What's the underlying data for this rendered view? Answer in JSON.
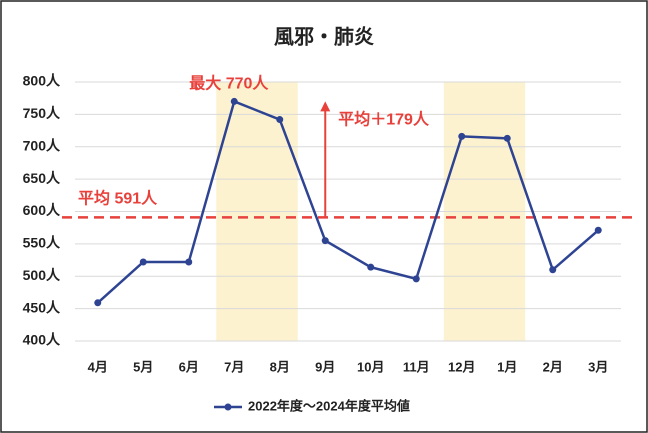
{
  "chart_data": {
    "type": "line",
    "title": "風邪・肺炎",
    "categories": [
      "4月",
      "5月",
      "6月",
      "7月",
      "8月",
      "9月",
      "10月",
      "11月",
      "12月",
      "1月",
      "2月",
      "3月"
    ],
    "series": [
      {
        "name": "2022年度～2024年度平均値",
        "color": "#2e4493",
        "values": [
          459,
          522,
          522,
          770,
          742,
          555,
          514,
          496,
          716,
          713,
          510,
          571
        ]
      }
    ],
    "ylim": [
      400,
      800
    ],
    "yticks": [
      {
        "value": 400,
        "label": "400人"
      },
      {
        "value": 450,
        "label": "450人"
      },
      {
        "value": 500,
        "label": "500人"
      },
      {
        "value": 550,
        "label": "550人"
      },
      {
        "value": 600,
        "label": "600人"
      },
      {
        "value": 650,
        "label": "650人"
      },
      {
        "value": 700,
        "label": "700人"
      },
      {
        "value": 750,
        "label": "750人"
      },
      {
        "value": 800,
        "label": "800人"
      }
    ],
    "grid": true,
    "legend": "bottom",
    "highlights": [
      {
        "from": "7月",
        "to": "8月"
      },
      {
        "from": "12月",
        "to": "1月"
      }
    ],
    "highlight_color": "#fdf2cf",
    "reference_line": {
      "value": 591,
      "label": "平均 591人",
      "color": "#e8413c"
    },
    "max_annotation": {
      "value": 770,
      "label": "最大 770人"
    },
    "difference_annotation": {
      "value": 179,
      "label": "平均＋179人",
      "at": "9月"
    }
  }
}
